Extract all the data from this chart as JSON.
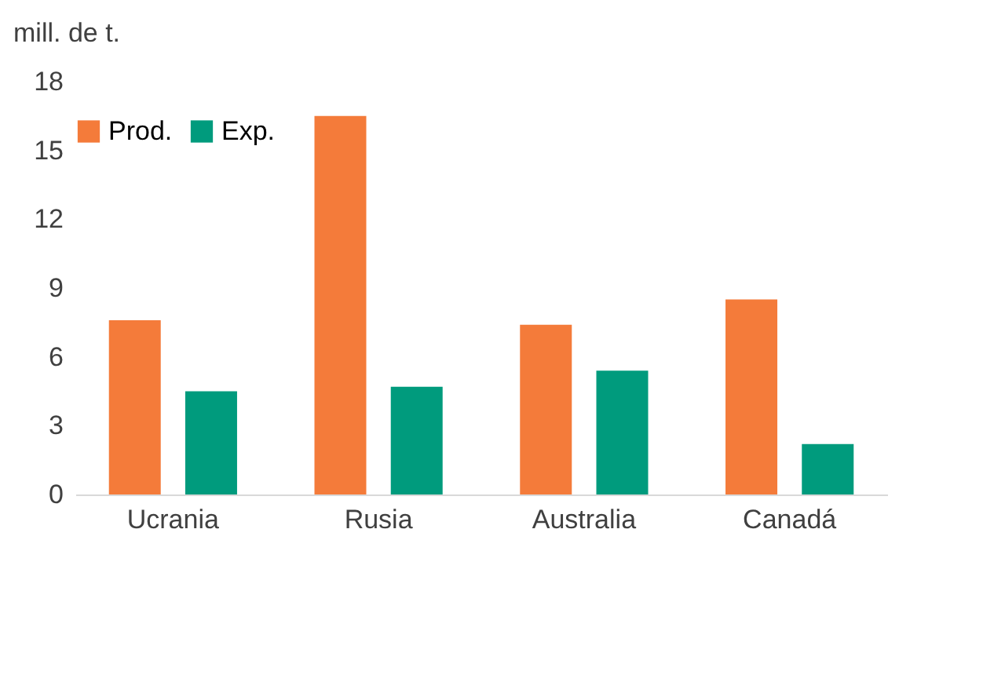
{
  "chart_data": {
    "type": "bar",
    "ylabel": "mill. de t.",
    "categories": [
      "Ucrania",
      "Rusia",
      "Australia",
      "Canadá"
    ],
    "series": [
      {
        "name": "Prod.",
        "color": "#f47b3a",
        "values": [
          7.6,
          16.5,
          7.4,
          8.5
        ]
      },
      {
        "name": "Exp.",
        "color": "#009b7d",
        "values": [
          4.5,
          4.7,
          5.4,
          2.2
        ]
      }
    ],
    "ylim": [
      0,
      18
    ],
    "yticks": [
      0,
      3,
      6,
      9,
      12,
      15,
      18
    ],
    "grid": false,
    "legend": "top"
  }
}
